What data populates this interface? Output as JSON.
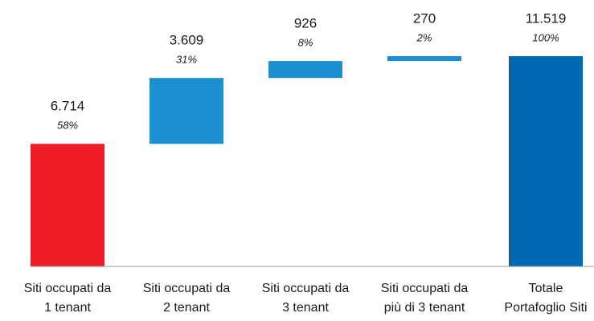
{
  "chart_data": {
    "type": "waterfall",
    "categories": [
      [
        "Siti occupati da",
        "1 tenant"
      ],
      [
        "Siti occupati da",
        "2 tenant"
      ],
      [
        "Siti occupati da",
        "3 tenant"
      ],
      [
        "Siti occupati da",
        "più di 3 tenant"
      ],
      [
        "Totale",
        "Portafoglio Siti"
      ]
    ],
    "values": [
      6714,
      3609,
      926,
      270,
      11519
    ],
    "value_labels": [
      "6.714",
      "3.609",
      "926",
      "270",
      "11.519"
    ],
    "share_labels": [
      "58%",
      "31%",
      "8%",
      "2%",
      "100%"
    ],
    "is_total": [
      false,
      false,
      false,
      false,
      true
    ],
    "colors": [
      "#ee1c25",
      "#1b8fd2",
      "#1b8fd2",
      "#1b8fd2",
      "#0067b1"
    ],
    "ylim": [
      0,
      12000
    ]
  }
}
